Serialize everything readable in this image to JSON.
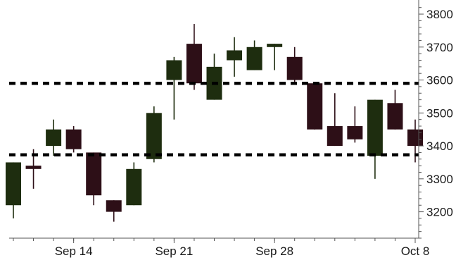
{
  "chart_data": {
    "type": "candlestick",
    "title": "",
    "xlabel": "",
    "ylabel": "",
    "ylim": [
      3120,
      3830
    ],
    "y_ticks": [
      3200,
      3300,
      3400,
      3500,
      3600,
      3700,
      3800
    ],
    "y_tick_labels": [
      "3200",
      "3300",
      "3400",
      "3500",
      "3600",
      "3700",
      "3800"
    ],
    "x_tick_labels": [
      {
        "label": "Sep 14",
        "date": "2020-09-14"
      },
      {
        "label": "Sep 21",
        "date": "2020-09-21"
      },
      {
        "label": "Sep 28",
        "date": "2020-09-28"
      },
      {
        "label": "Oct 8",
        "date": "2020-10-08"
      }
    ],
    "grid": false,
    "up_color": "#1e2d0f",
    "down_color": "#2d0f17",
    "reference_lines": [
      {
        "y": 3590,
        "style": "dashed",
        "color": "#000000"
      },
      {
        "y": 3373,
        "style": "dashed",
        "color": "#000000"
      }
    ],
    "candles": [
      {
        "date": "2020-09-09",
        "open": 3220,
        "high": 3350,
        "low": 3180,
        "close": 3350
      },
      {
        "date": "2020-09-10",
        "open": 3340,
        "high": 3390,
        "low": 3270,
        "close": 3330
      },
      {
        "date": "2020-09-11",
        "open": 3400,
        "high": 3480,
        "low": 3370,
        "close": 3450
      },
      {
        "date": "2020-09-14",
        "open": 3450,
        "high": 3460,
        "low": 3380,
        "close": 3390
      },
      {
        "date": "2020-09-15",
        "open": 3380,
        "high": 3380,
        "low": 3220,
        "close": 3250
      },
      {
        "date": "2020-09-16",
        "open": 3235,
        "high": 3235,
        "low": 3170,
        "close": 3200
      },
      {
        "date": "2020-09-17",
        "open": 3220,
        "high": 3350,
        "low": 3220,
        "close": 3330
      },
      {
        "date": "2020-09-18",
        "open": 3360,
        "high": 3520,
        "low": 3350,
        "close": 3500
      },
      {
        "date": "2020-09-21",
        "open": 3600,
        "high": 3670,
        "low": 3480,
        "close": 3660
      },
      {
        "date": "2020-09-22",
        "open": 3710,
        "high": 3770,
        "low": 3570,
        "close": 3590
      },
      {
        "date": "2020-09-23",
        "open": 3540,
        "high": 3680,
        "low": 3540,
        "close": 3640
      },
      {
        "date": "2020-09-24",
        "open": 3660,
        "high": 3730,
        "low": 3610,
        "close": 3690
      },
      {
        "date": "2020-09-25",
        "open": 3630,
        "high": 3720,
        "low": 3630,
        "close": 3700
      },
      {
        "date": "2020-09-28",
        "open": 3700,
        "high": 3710,
        "low": 3630,
        "close": 3710
      },
      {
        "date": "2020-09-29",
        "open": 3670,
        "high": 3700,
        "low": 3590,
        "close": 3600
      },
      {
        "date": "2020-09-30",
        "open": 3590,
        "high": 3590,
        "low": 3450,
        "close": 3450
      },
      {
        "date": "2020-10-01",
        "open": 3460,
        "high": 3560,
        "low": 3400,
        "close": 3400
      },
      {
        "date": "2020-10-02",
        "open": 3460,
        "high": 3520,
        "low": 3410,
        "close": 3420
      },
      {
        "date": "2020-10-05",
        "open": 3370,
        "high": 3540,
        "low": 3300,
        "close": 3540
      },
      {
        "date": "2020-10-06",
        "open": 3530,
        "high": 3570,
        "low": 3450,
        "close": 3450
      },
      {
        "date": "2020-10-07",
        "open": 3450,
        "high": 3480,
        "low": 3350,
        "close": 3400
      }
    ]
  }
}
